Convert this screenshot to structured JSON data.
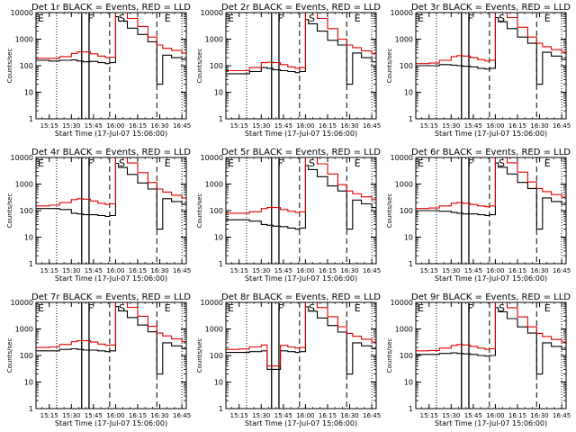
{
  "chart_data": [
    {
      "type": "line",
      "title": "Det 1r BLACK = Events, RED = LLD",
      "ylabel": "Counts/sec",
      "xlabel": "Start Time (17-Jul-07 15:06:00)",
      "markers": [
        "E",
        "F",
        "S",
        "E"
      ],
      "x": [
        "15:06",
        "15:15",
        "15:22",
        "15:30",
        "15:34",
        "15:38",
        "15:43",
        "15:48",
        "15:53",
        "15:56",
        "16:00",
        "16:02",
        "16:08",
        "16:15",
        "16:22",
        "16:28",
        "16:32",
        "16:38",
        "16:45",
        "16:48"
      ],
      "series": [
        {
          "name": "BLACK = Events",
          "color": "#000000",
          "values": [
            160,
            150,
            160,
            165,
            150,
            140,
            145,
            130,
            120,
            130,
            7000,
            4800,
            2600,
            1500,
            800,
            20,
            250,
            200,
            170,
            150
          ]
        },
        {
          "name": "RED = LLD",
          "color": "#e00000",
          "values": [
            190,
            190,
            220,
            290,
            330,
            330,
            280,
            230,
            200,
            210,
            10000,
            10000,
            6000,
            3000,
            1200,
            600,
            450,
            380,
            300,
            260
          ]
        }
      ]
    },
    {
      "type": "line",
      "title": "Det 2r BLACK = Events, RED = LLD",
      "ylabel": "Counts/sec",
      "xlabel": "Start Time (17-Jul-07 15:06:00)",
      "markers": [
        "E",
        "F",
        "S",
        "E"
      ],
      "x": [
        "15:06",
        "15:15",
        "15:22",
        "15:30",
        "15:34",
        "15:38",
        "15:43",
        "15:48",
        "15:53",
        "15:56",
        "16:00",
        "16:02",
        "16:08",
        "16:15",
        "16:22",
        "16:28",
        "16:32",
        "16:38",
        "16:45",
        "16:48"
      ],
      "series": [
        {
          "name": "BLACK = Events",
          "color": "#000000",
          "values": [
            50,
            50,
            60,
            85,
            80,
            70,
            65,
            60,
            55,
            60,
            5500,
            3800,
            2000,
            900,
            600,
            20,
            300,
            200,
            140,
            110
          ]
        },
        {
          "name": "RED = LLD",
          "color": "#e00000",
          "values": [
            65,
            65,
            85,
            130,
            135,
            130,
            110,
            90,
            80,
            85,
            10000,
            10000,
            6000,
            2500,
            1000,
            600,
            480,
            360,
            280,
            230
          ]
        }
      ]
    },
    {
      "type": "line",
      "title": "Det 3r BLACK = Events, RED = LLD",
      "ylabel": "Counts/sec",
      "xlabel": "Start Time (17-Jul-07 15:06:00)",
      "markers": [
        "E",
        "F",
        "S",
        "E"
      ],
      "x": [
        "15:06",
        "15:15",
        "15:22",
        "15:30",
        "15:34",
        "15:38",
        "15:43",
        "15:48",
        "15:53",
        "15:56",
        "16:00",
        "16:02",
        "16:08",
        "16:15",
        "16:22",
        "16:28",
        "16:32",
        "16:38",
        "16:45",
        "16:48"
      ],
      "series": [
        {
          "name": "BLACK = Events",
          "color": "#000000",
          "values": [
            100,
            100,
            110,
            105,
            100,
            95,
            90,
            80,
            75,
            80,
            6500,
            4500,
            2500,
            1200,
            700,
            20,
            320,
            230,
            170,
            140
          ]
        },
        {
          "name": "RED = LLD",
          "color": "#e00000",
          "values": [
            120,
            125,
            160,
            220,
            240,
            230,
            200,
            170,
            150,
            160,
            10000,
            10000,
            6500,
            2800,
            1200,
            700,
            520,
            400,
            320,
            270
          ]
        }
      ]
    },
    {
      "type": "line",
      "title": "Det 4r BLACK = Events, RED = LLD",
      "ylabel": "Counts/sec",
      "xlabel": "Start Time (17-Jul-07 15:06:00)",
      "markers": [
        "E",
        "F",
        "S",
        "E"
      ],
      "x": [
        "15:06",
        "15:15",
        "15:22",
        "15:30",
        "15:34",
        "15:38",
        "15:43",
        "15:48",
        "15:53",
        "15:56",
        "16:00",
        "16:02",
        "16:08",
        "16:15",
        "16:22",
        "16:28",
        "16:32",
        "16:38",
        "16:45",
        "16:48"
      ],
      "series": [
        {
          "name": "BLACK = Events",
          "color": "#000000",
          "values": [
            120,
            120,
            110,
            80,
            75,
            70,
            70,
            65,
            60,
            65,
            6000,
            4200,
            2300,
            1100,
            650,
            20,
            280,
            220,
            170,
            140
          ]
        },
        {
          "name": "RED = LLD",
          "color": "#e00000",
          "values": [
            150,
            160,
            200,
            260,
            280,
            270,
            230,
            190,
            170,
            180,
            10000,
            10000,
            6200,
            2700,
            1150,
            650,
            500,
            380,
            300,
            250
          ]
        }
      ]
    },
    {
      "type": "line",
      "title": "Det 5r BLACK = Events, RED = LLD",
      "ylabel": "Counts/sec",
      "xlabel": "Start Time (17-Jul-07 15:06:00)",
      "markers": [
        "E",
        "F",
        "S",
        "E"
      ],
      "x": [
        "15:06",
        "15:15",
        "15:22",
        "15:30",
        "15:34",
        "15:38",
        "15:43",
        "15:48",
        "15:53",
        "15:56",
        "16:00",
        "16:02",
        "16:08",
        "16:15",
        "16:22",
        "16:28",
        "16:32",
        "16:38",
        "16:45",
        "16:48"
      ],
      "series": [
        {
          "name": "BLACK = Events",
          "color": "#000000",
          "values": [
            45,
            45,
            40,
            30,
            28,
            26,
            25,
            22,
            20,
            22,
            5000,
            3500,
            1900,
            850,
            550,
            20,
            250,
            180,
            130,
            100
          ]
        },
        {
          "name": "RED = LLD",
          "color": "#e00000",
          "values": [
            80,
            80,
            90,
            120,
            130,
            130,
            110,
            95,
            85,
            90,
            10000,
            10000,
            5800,
            2400,
            950,
            550,
            430,
            330,
            260,
            220
          ]
        }
      ]
    },
    {
      "type": "line",
      "title": "Det 6r BLACK = Events, RED = LLD",
      "ylabel": "Counts/sec",
      "xlabel": "Start Time (17-Jul-07 15:06:00)",
      "markers": [
        "E",
        "F",
        "S",
        "E"
      ],
      "x": [
        "15:06",
        "15:15",
        "15:22",
        "15:30",
        "15:34",
        "15:38",
        "15:43",
        "15:48",
        "15:53",
        "15:56",
        "16:00",
        "16:02",
        "16:08",
        "16:15",
        "16:22",
        "16:28",
        "16:32",
        "16:38",
        "16:45",
        "16:48"
      ],
      "series": [
        {
          "name": "BLACK = Events",
          "color": "#000000",
          "values": [
            100,
            100,
            95,
            85,
            80,
            75,
            75,
            70,
            65,
            70,
            6200,
            4300,
            2400,
            1150,
            680,
            20,
            300,
            220,
            170,
            140
          ]
        },
        {
          "name": "RED = LLD",
          "color": "#e00000",
          "values": [
            120,
            125,
            150,
            190,
            200,
            190,
            170,
            150,
            140,
            150,
            10000,
            10000,
            6300,
            2800,
            1200,
            680,
            520,
            400,
            320,
            270
          ]
        }
      ]
    },
    {
      "type": "line",
      "title": "Det 7r BLACK = Events, RED = LLD",
      "ylabel": "Counts/sec",
      "xlabel": "Start Time (17-Jul-07 15:06:00)",
      "markers": [
        "E",
        "F",
        "S",
        "E"
      ],
      "x": [
        "15:06",
        "15:15",
        "15:22",
        "15:30",
        "15:34",
        "15:38",
        "15:43",
        "15:48",
        "15:53",
        "15:56",
        "16:00",
        "16:02",
        "16:08",
        "16:15",
        "16:22",
        "16:28",
        "16:32",
        "16:38",
        "16:45",
        "16:48"
      ],
      "series": [
        {
          "name": "BLACK = Events",
          "color": "#000000",
          "values": [
            150,
            150,
            170,
            180,
            170,
            160,
            160,
            150,
            140,
            150,
            7000,
            4800,
            2700,
            1400,
            780,
            20,
            300,
            230,
            180,
            150
          ]
        },
        {
          "name": "RED = LLD",
          "color": "#e00000",
          "values": [
            200,
            210,
            260,
            330,
            360,
            360,
            320,
            270,
            240,
            250,
            10000,
            10000,
            6500,
            3000,
            1250,
            700,
            550,
            420,
            330,
            280
          ]
        }
      ]
    },
    {
      "type": "line",
      "title": "Det 8r BLACK = Events, RED = LLD",
      "ylabel": "Counts/sec",
      "xlabel": "Start Time (17-Jul-07 15:06:00)",
      "markers": [
        "E",
        "F",
        "S",
        "E"
      ],
      "x": [
        "15:06",
        "15:15",
        "15:22",
        "15:30",
        "15:34",
        "15:38",
        "15:43",
        "15:48",
        "15:53",
        "15:56",
        "16:00",
        "16:02",
        "16:08",
        "16:15",
        "16:22",
        "16:28",
        "16:32",
        "16:38",
        "16:45",
        "16:48"
      ],
      "series": [
        {
          "name": "BLACK = Events",
          "color": "#000000",
          "values": [
            130,
            130,
            140,
            150,
            30,
            30,
            150,
            140,
            130,
            140,
            6800,
            4700,
            2600,
            1350,
            760,
            20,
            300,
            230,
            180,
            150
          ]
        },
        {
          "name": "RED = LLD",
          "color": "#e00000",
          "values": [
            170,
            175,
            210,
            250,
            40,
            40,
            240,
            210,
            190,
            200,
            10000,
            10000,
            6400,
            2900,
            1220,
            680,
            530,
            410,
            320,
            270
          ]
        }
      ]
    },
    {
      "type": "line",
      "title": "Det 9r BLACK = Events, RED = LLD",
      "ylabel": "Counts/sec",
      "xlabel": "Start Time (17-Jul-07 15:06:00)",
      "markers": [
        "E",
        "F",
        "S",
        "E"
      ],
      "x": [
        "15:06",
        "15:15",
        "15:22",
        "15:30",
        "15:34",
        "15:38",
        "15:43",
        "15:48",
        "15:53",
        "15:56",
        "16:00",
        "16:02",
        "16:08",
        "16:15",
        "16:22",
        "16:28",
        "16:32",
        "16:38",
        "16:45",
        "16:48"
      ],
      "series": [
        {
          "name": "BLACK = Events",
          "color": "#000000",
          "values": [
            110,
            110,
            120,
            125,
            120,
            115,
            110,
            100,
            95,
            100,
            6300,
            4400,
            2450,
            1200,
            700,
            20,
            300,
            220,
            170,
            140
          ]
        },
        {
          "name": "RED = LLD",
          "color": "#e00000",
          "values": [
            150,
            155,
            190,
            240,
            260,
            250,
            220,
            190,
            170,
            180,
            10000,
            10000,
            6300,
            2850,
            1200,
            680,
            520,
            400,
            320,
            270
          ]
        }
      ]
    }
  ],
  "shared": {
    "x_ticks": [
      "15:15",
      "15:30",
      "15:45",
      "16:00",
      "16:15",
      "16:30",
      "16:45"
    ],
    "x_range": [
      "15:06",
      "16:48"
    ],
    "y_ticks": [
      1,
      10,
      100,
      1000,
      10000
    ],
    "y_range": [
      1,
      10000
    ],
    "y_scale": "log",
    "vlines": [
      {
        "x": "15:20",
        "style": "dotted"
      },
      {
        "x": "15:37",
        "style": "solid"
      },
      {
        "x": "15:42",
        "style": "solid"
      },
      {
        "x": "15:56",
        "style": "dashed"
      },
      {
        "x": "16:28",
        "style": "dashed"
      },
      {
        "x": "16:45",
        "style": "dotted"
      }
    ],
    "marker_positions": [
      "15:06",
      "15:40",
      "16:01",
      "16:32"
    ]
  }
}
